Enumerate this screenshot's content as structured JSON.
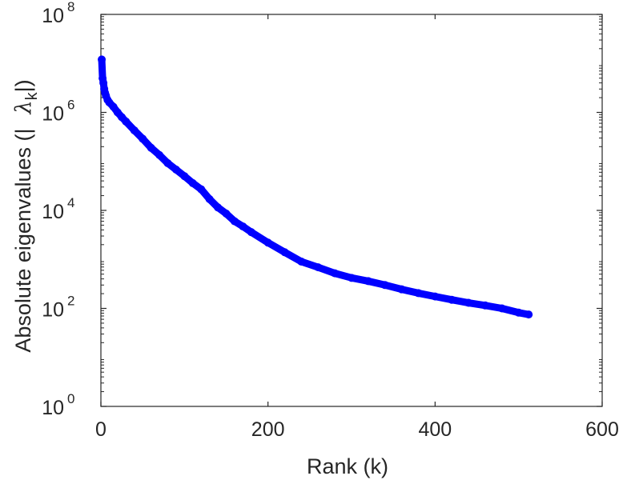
{
  "chart_data": {
    "type": "scatter",
    "xlabel": "Rank (k)",
    "ylabel_parts": {
      "prefix": "Absolute eigenvalues (|",
      "symbol": "λ",
      "subscript": "k",
      "suffix": "|)"
    },
    "xlim": [
      0,
      600
    ],
    "ylim": [
      1,
      100000000
    ],
    "yscale": "log",
    "x_ticks": [
      "0",
      "200",
      "400",
      "600"
    ],
    "y_ticks": [
      {
        "base": "10",
        "exp": "0"
      },
      {
        "base": "10",
        "exp": "2"
      },
      {
        "base": "10",
        "exp": "4"
      },
      {
        "base": "10",
        "exp": "6"
      },
      {
        "base": "10",
        "exp": "8"
      }
    ],
    "marker_color": "#0000ff",
    "grid": false,
    "series": [
      {
        "x": [
          1,
          2,
          3,
          4,
          5,
          6,
          8,
          10,
          15,
          20,
          25,
          30,
          40,
          50,
          60,
          70,
          80,
          90,
          100,
          110,
          120,
          130,
          140,
          150,
          160,
          170,
          180,
          200,
          220,
          240,
          260,
          280,
          300,
          320,
          340,
          360,
          380,
          400,
          420,
          440,
          460,
          480,
          500,
          512
        ],
        "y": [
          12000000,
          5000000,
          4000000,
          3000000,
          2500000,
          2200000,
          1800000,
          1600000,
          1300000,
          1000000,
          800000,
          650000,
          430000,
          290000,
          190000,
          135000,
          92000,
          68000,
          50000,
          36000,
          27000,
          17000,
          11500,
          8600,
          6000,
          4700,
          3600,
          2200,
          1400,
          900,
          690,
          520,
          420,
          360,
          300,
          245,
          205,
          175,
          150,
          130,
          115,
          100,
          82,
          75
        ]
      }
    ]
  }
}
